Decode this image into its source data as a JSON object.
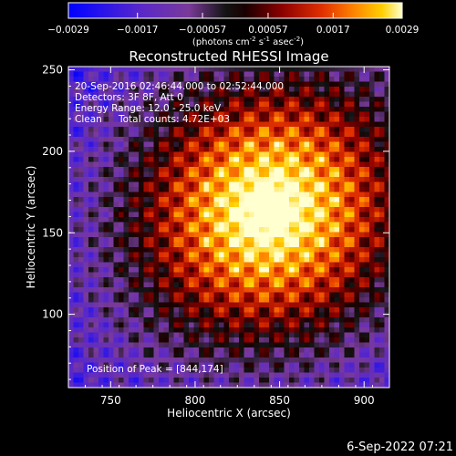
{
  "chart_data": {
    "type": "heatmap",
    "title": "Reconstructed RHESSI Image",
    "colorbar": {
      "ticks": [
        "−0.0029",
        "−0.0017",
        "−0.00057",
        "0.00057",
        "0.0017",
        "0.0029"
      ],
      "range": [
        -0.0029,
        0.0029
      ],
      "unit_text": "(photons cm",
      "unit_exp1": "-2",
      "unit_mid1": " s",
      "unit_exp2": "-1",
      "unit_mid2": " asec",
      "unit_exp3": "-2",
      "unit_end": ")"
    },
    "xlabel": "Heliocentric X (arcsec)",
    "ylabel": "Heliocentric Y (arcsec)",
    "xlim": [
      725,
      915
    ],
    "ylim": [
      55,
      252
    ],
    "xticks": [
      {
        "label": "750",
        "value": 750
      },
      {
        "label": "800",
        "value": 800
      },
      {
        "label": "850",
        "value": 850
      },
      {
        "label": "900",
        "value": 900
      }
    ],
    "yticks": [
      {
        "label": "100",
        "value": 100
      },
      {
        "label": "150",
        "value": 150
      },
      {
        "label": "200",
        "value": 200
      },
      {
        "label": "250",
        "value": 250
      }
    ],
    "peak": {
      "x": 844,
      "y": 174
    },
    "colormap": "red-temperature"
  },
  "annotations": {
    "time_range": "20-Sep-2016 02:46:44.000 to 02:52:44.000",
    "detectors": "Detectors: 3F 8F, Att 0",
    "energy": "Energy Range: 12.0 - 25.0 keV",
    "method": "Clean",
    "counts": "Total counts: 4.72E+03",
    "peak_label": "Position of Peak = [844,174]"
  },
  "footer": {
    "date": "6-Sep-2022 07:21"
  }
}
